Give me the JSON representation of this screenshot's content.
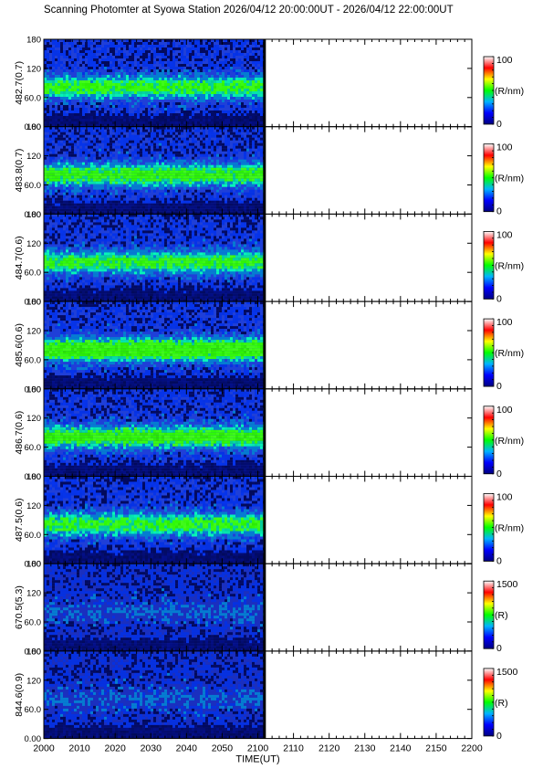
{
  "page": {
    "title": "Scanning Photomter at Syowa Station 2026/04/12 20:00:00UT - 2026/04/12 22:00:00UT"
  },
  "chart_data": {
    "type": "heatmap",
    "title": "Scanning Photomter at Syowa Station 2026/04/12 20:00:00UT - 2026/04/12 22:00:00UT",
    "xlabel": "TIME(UT)",
    "x_ticks": [
      "2000",
      "2010",
      "2020",
      "2030",
      "2040",
      "2050",
      "2100",
      "2110",
      "2120",
      "2130",
      "2140",
      "2150",
      "2200"
    ],
    "x_range_minutes": [
      0,
      120
    ],
    "data_end_minute": 62,
    "y_range": [
      0,
      180
    ],
    "y_ticks": [
      "0.00",
      "60.0",
      "120",
      "180"
    ],
    "colormap": [
      "#000080",
      "#0000ff",
      "#00b4ff",
      "#00ff00",
      "#ffff00",
      "#ff0000",
      "#ffffff"
    ],
    "panels": [
      {
        "ylabel": "482.7(0.7)",
        "colorbar": {
          "max": "100",
          "min": "0",
          "unit": "(R/nm)"
        }
      },
      {
        "ylabel": "483.8(0.7)",
        "colorbar": {
          "max": "100",
          "min": "0",
          "unit": "(R/nm)"
        }
      },
      {
        "ylabel": "484.7(0.6)",
        "colorbar": {
          "max": "100",
          "min": "0",
          "unit": "(R/nm)"
        }
      },
      {
        "ylabel": "485.6(0.6)",
        "colorbar": {
          "max": "100",
          "min": "0",
          "unit": "(R/nm)"
        }
      },
      {
        "ylabel": "486.7(0.6)",
        "colorbar": {
          "max": "100",
          "min": "0",
          "unit": "(R/nm)"
        }
      },
      {
        "ylabel": "487.5(0.6)",
        "colorbar": {
          "max": "100",
          "min": "0",
          "unit": "(R/nm)"
        }
      },
      {
        "ylabel": "670.5(5.3)",
        "colorbar": {
          "max": "1500",
          "min": "0",
          "unit": "(R)"
        }
      },
      {
        "ylabel": "844.6(0.9)",
        "colorbar": {
          "max": "1500",
          "min": "0",
          "unit": "(R)"
        }
      }
    ]
  }
}
